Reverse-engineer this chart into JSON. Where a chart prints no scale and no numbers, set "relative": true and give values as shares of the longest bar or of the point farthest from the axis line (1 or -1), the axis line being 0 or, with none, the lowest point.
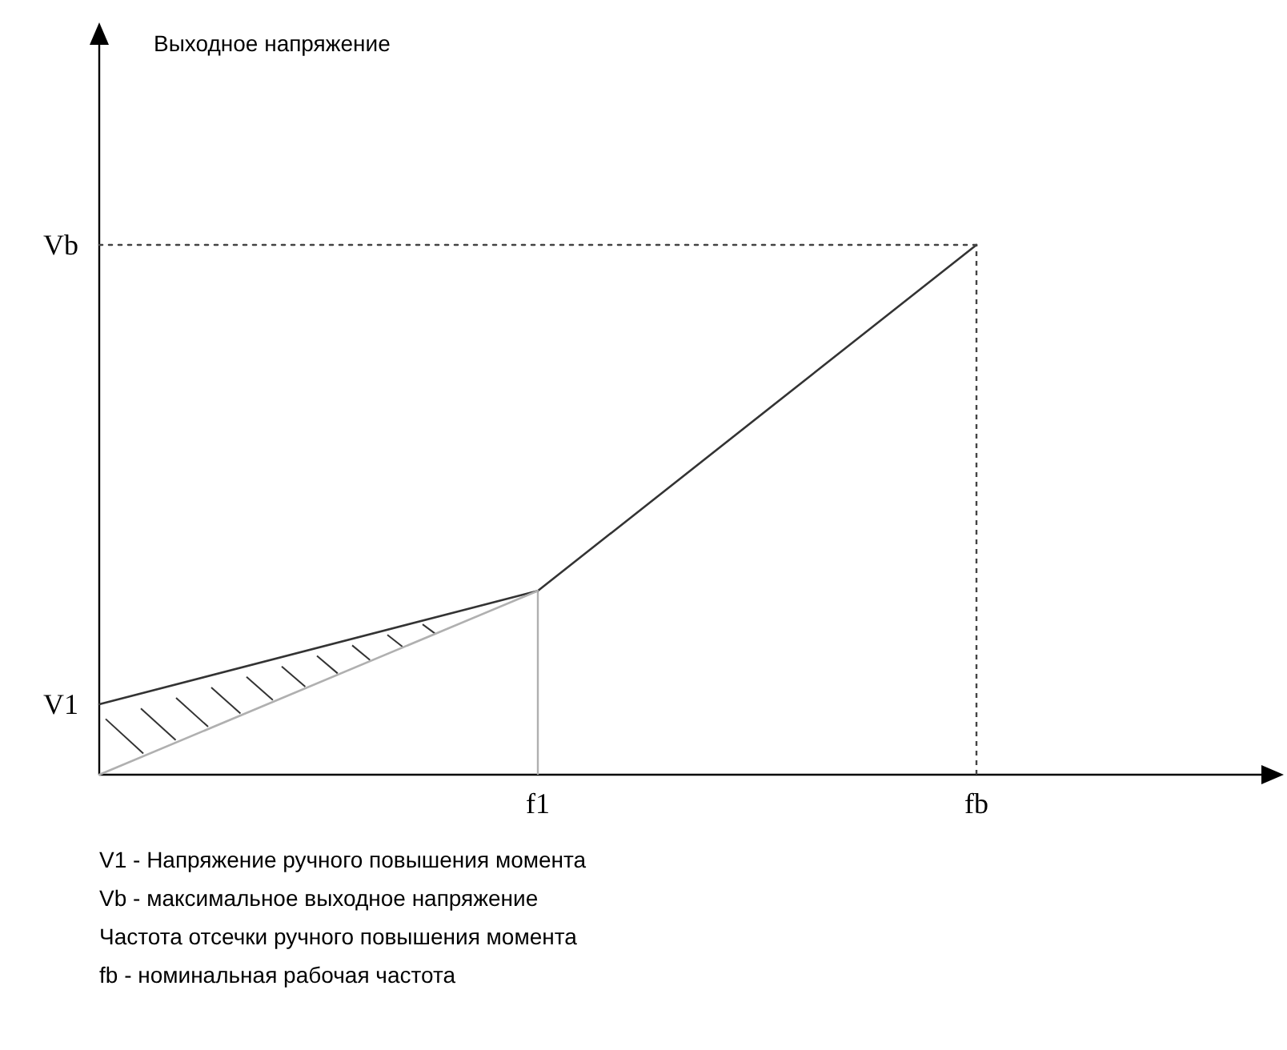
{
  "chart_data": {
    "type": "line",
    "relative": true,
    "categories": [
      null,
      "f1",
      "fb"
    ],
    "marker": "none",
    "series": [
      {
        "values": [
          0.133,
          0.347,
          1
        ],
        "color": "#333333",
        "line_style": "solid"
      },
      {
        "values": [
          0,
          0.347,
          null
        ],
        "color": "#b0b0b0",
        "line_style": "solid"
      },
      {
        "values": [
          1,
          1,
          1
        ],
        "color": "#444444",
        "line_style": "dotted"
      }
    ],
    "ref_lines": [
      {
        "axis": "x",
        "value": "fb",
        "color": "#444444",
        "line_style": "dotted"
      },
      {
        "axis": "x",
        "value": "f1",
        "color": "#b0b0b0",
        "line_style": "solid"
      }
    ],
    "annotations": [
      "V1",
      "Vb",
      "Выходное напряжение",
      "V1 - Напряжение ручного повышения момента",
      "Vb - максимальное выходное напряжение",
      "Частота отсечки ручного повышения момента",
      "fb - номинальная рабочая частота"
    ]
  }
}
